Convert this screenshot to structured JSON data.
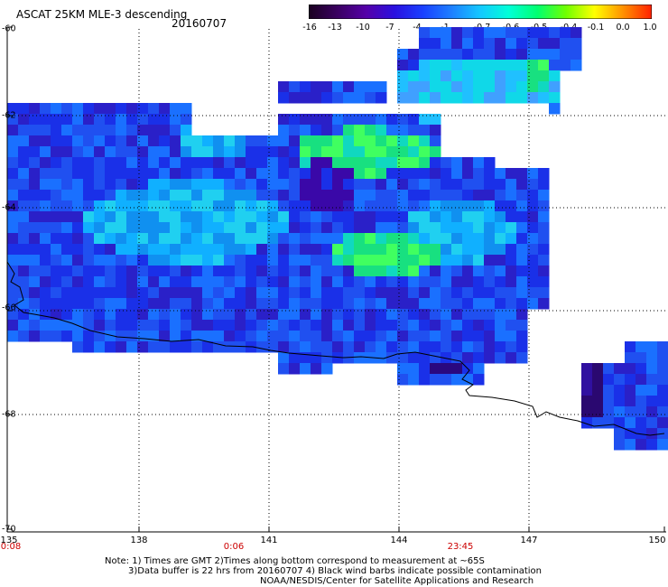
{
  "header": {
    "title": "ASCAT 25KM MLE-3 descending",
    "date": "20160707"
  },
  "colorbar": {
    "labels": [
      "-16",
      "-13",
      "-10",
      "-7",
      "-4",
      "-1",
      "-0.7",
      "-0.6",
      "-0.5",
      "-0.4",
      "-0.1",
      "0.0",
      "1.0"
    ],
    "colors": [
      "#1a0020",
      "#3a0060",
      "#5500a8",
      "#2a10e0",
      "#1a40ff",
      "#1e80ff",
      "#14c8ff",
      "#00ffd8",
      "#00ff70",
      "#70ff00",
      "#ffff00",
      "#ff9000",
      "#ff2000"
    ]
  },
  "axes": {
    "lat_labels": [
      "-60",
      "-62",
      "-64",
      "-66",
      "-68",
      "-70"
    ],
    "lon_labels": [
      "135",
      "138",
      "141",
      "144",
      "147",
      "150"
    ],
    "time_labels": [
      "0:08",
      "0:06",
      "23:45"
    ]
  },
  "notes": {
    "line1": "Note: 1) Times are GMT 2)Times along bottom correspond to measurement at ~65S",
    "line2": "3)Data buffer is 22 hrs from 20160707 4) Black wind barbs indicate possible contamination",
    "line3": "NOAA/NESDIS/Center for Satellite Applications and Research"
  }
}
